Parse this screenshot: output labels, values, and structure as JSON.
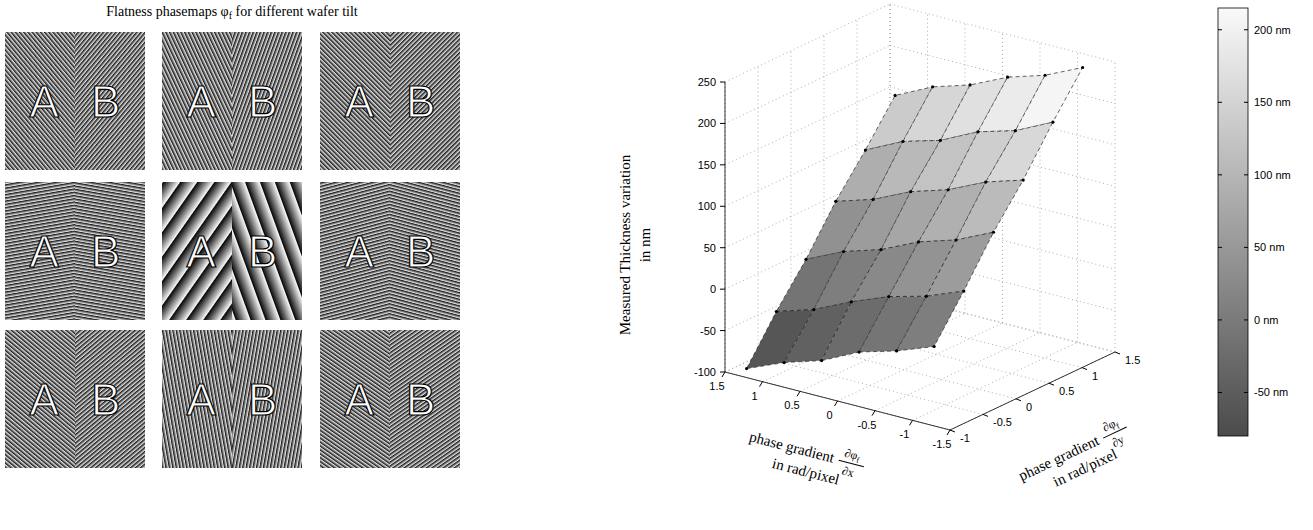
{
  "left_panel": {
    "title": {
      "before": "Flatness phasemaps",
      "symbol": "φ",
      "subscript": "f",
      "after": "for different wafer tilt"
    },
    "rows": 3,
    "columns": 3,
    "labels": [
      "A",
      "B"
    ]
  },
  "chart_data": {
    "type": "surface",
    "z_label": [
      "Measured Thickness variation",
      "in nm"
    ],
    "x_label": {
      "text": "phase gradient",
      "numerator": "∂φ",
      "subscript": "f",
      "denominator": "∂x",
      "unit": "in rad/pixel"
    },
    "y_label": {
      "text": "phase gradient",
      "numerator": "∂φ",
      "subscript": "f",
      "denominator": "∂y",
      "unit": "in rad/pixel"
    },
    "xlim": [
      -1.5,
      1.5
    ],
    "xticks": [
      1.5,
      1,
      0.5,
      0,
      -0.5,
      -1,
      -1.5
    ],
    "ylim": [
      -1,
      1.5
    ],
    "yticks": [
      -1,
      -0.5,
      0,
      0.5,
      1,
      1.5
    ],
    "zlim": [
      -100,
      250
    ],
    "zticks": [
      -100,
      -50,
      0,
      50,
      100,
      150,
      200,
      250
    ],
    "grid": true,
    "x": [
      1.3,
      0.8,
      0.3,
      -0.2,
      -0.7,
      -1.2
    ],
    "y": [
      -0.9,
      -0.45,
      0,
      0.45,
      0.9,
      1.35
    ],
    "z": [
      [
        -95,
        -76,
        -62,
        -40,
        -27,
        -10
      ],
      [
        -43,
        -29,
        -8,
        10,
        22,
        40
      ],
      [
        3,
        24,
        38,
        59,
        73,
        94
      ],
      [
        56,
        70,
        91,
        105,
        126,
        140
      ],
      [
        101,
        123,
        136,
        158,
        171,
        193
      ],
      [
        150,
        172,
        186,
        207,
        221,
        242
      ]
    ],
    "colorbar": {
      "range": [
        -80,
        215
      ],
      "ticks": [
        {
          "value": -50,
          "label": "-50 nm"
        },
        {
          "value": 0,
          "label": "0 nm"
        },
        {
          "value": 50,
          "label": "50 nm"
        },
        {
          "value": 100,
          "label": "100 nm"
        },
        {
          "value": 150,
          "label": "150 nm"
        },
        {
          "value": 200,
          "label": "200 nm"
        }
      ]
    }
  }
}
